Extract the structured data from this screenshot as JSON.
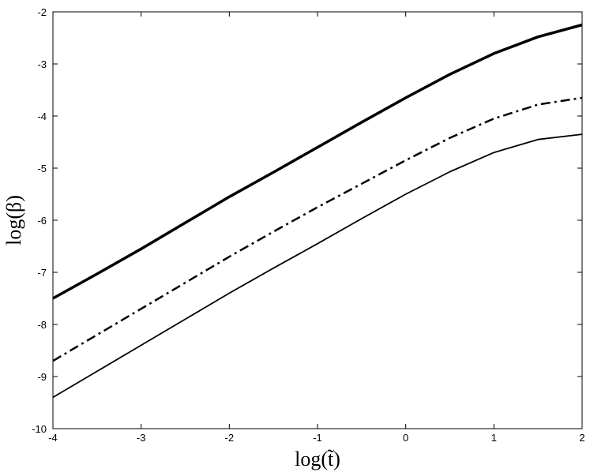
{
  "chart_data": {
    "type": "line",
    "x_label": "log(t̃)",
    "y_label": "log(β)",
    "x": [
      -4,
      -3.5,
      -3,
      -2.5,
      -2,
      -1.5,
      -1,
      -0.5,
      0,
      0.5,
      1,
      1.5,
      2
    ],
    "series": [
      {
        "color": "#000000",
        "linewidth": 3.5,
        "dash": "solid",
        "values": [
          -7.5,
          -7.03,
          -6.55,
          -6.05,
          -5.55,
          -5.08,
          -4.6,
          -4.12,
          -3.65,
          -3.2,
          -2.8,
          -2.48,
          -2.25
        ]
      },
      {
        "color": "#000000",
        "linewidth": 2.5,
        "dash": "dashdot",
        "values": [
          -8.7,
          -8.2,
          -7.7,
          -7.2,
          -6.7,
          -6.22,
          -5.75,
          -5.3,
          -4.85,
          -4.42,
          -4.05,
          -3.78,
          -3.65
        ]
      },
      {
        "color": "#000000",
        "linewidth": 1.8,
        "dash": "solid",
        "values": [
          -9.4,
          -8.9,
          -8.4,
          -7.9,
          -7.4,
          -6.92,
          -6.45,
          -5.97,
          -5.5,
          -5.07,
          -4.7,
          -4.45,
          -4.35
        ]
      }
    ],
    "xlim": [
      -4,
      2
    ],
    "xticks": [
      -4,
      -3,
      -2,
      -1,
      0,
      1,
      2
    ],
    "ylim": [
      -10,
      -2
    ],
    "yticks": [
      -10,
      -9,
      -8,
      -7,
      -6,
      -5,
      -4,
      -3,
      -2
    ],
    "grid": false
  }
}
